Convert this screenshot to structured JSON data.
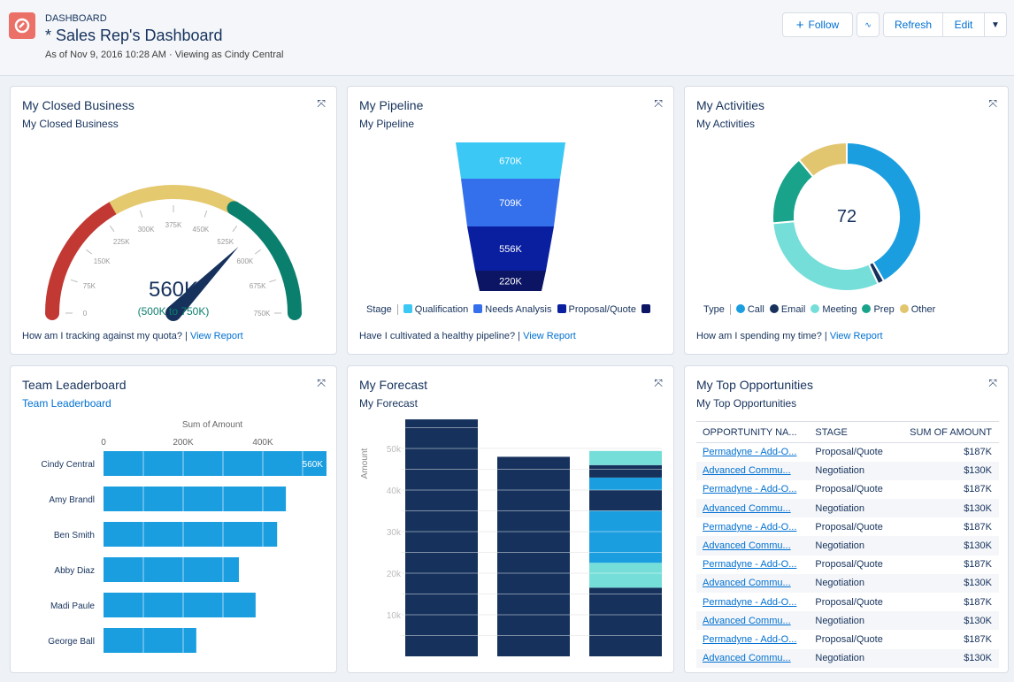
{
  "header": {
    "eyebrow": "DASHBOARD",
    "title": "* Sales Rep's Dashboard",
    "subtitle": "As of Nov 9, 2016 10:28 AM · Viewing as Cindy Central",
    "follow": "Follow",
    "refresh": "Refresh",
    "edit": "Edit"
  },
  "colors": {
    "accent": "#0070d2",
    "red": "#c23934",
    "yellow": "#e4c96f",
    "green": "#0b7f6e",
    "navy": "#16325c"
  },
  "cards": {
    "closed": {
      "title": "My Closed Business",
      "subtitle": "My Closed Business",
      "question": "How am I tracking against my quota?",
      "link": "View Report",
      "value": "560K",
      "range": "(500K to 750K)"
    },
    "pipeline": {
      "title": "My Pipeline",
      "subtitle": "My Pipeline",
      "question": "Have I cultivated a healthy pipeline?",
      "link": "View Report",
      "legend_title": "Stage"
    },
    "activities": {
      "title": "My Activities",
      "subtitle": "My Activities",
      "question": "How am I spending my time?",
      "link": "View Report",
      "legend_title": "Type",
      "total": "72"
    },
    "leaderboard": {
      "title": "Team Leaderboard",
      "subtitle": "Team Leaderboard"
    },
    "forecast": {
      "title": "My Forecast",
      "subtitle": "My Forecast"
    },
    "top": {
      "title": "My Top Opportunities",
      "subtitle": "My Top Opportunities",
      "columns": [
        "OPPORTUNITY NA...",
        "STAGE",
        "SUM OF AMOUNT"
      ],
      "rows": [
        [
          "Permadyne - Add-O...",
          "Proposal/Quote",
          "$187K"
        ],
        [
          "Advanced Commu...",
          "Negotiation",
          "$130K"
        ],
        [
          "Permadyne - Add-O...",
          "Proposal/Quote",
          "$187K"
        ],
        [
          "Advanced Commu...",
          "Negotiation",
          "$130K"
        ],
        [
          "Permadyne - Add-O...",
          "Proposal/Quote",
          "$187K"
        ],
        [
          "Advanced Commu...",
          "Negotiation",
          "$130K"
        ],
        [
          "Permadyne - Add-O...",
          "Proposal/Quote",
          "$187K"
        ],
        [
          "Advanced Commu...",
          "Negotiation",
          "$130K"
        ],
        [
          "Permadyne - Add-O...",
          "Proposal/Quote",
          "$187K"
        ],
        [
          "Advanced Commu...",
          "Negotiation",
          "$130K"
        ],
        [
          "Permadyne - Add-O...",
          "Proposal/Quote",
          "$187K"
        ],
        [
          "Advanced Commu...",
          "Negotiation",
          "$130K"
        ]
      ]
    }
  },
  "chart_data": [
    {
      "type": "gauge",
      "value": 560,
      "min": 0,
      "max": 750,
      "unit": "K",
      "ticks": [
        "0",
        "75K",
        "150K",
        "225K",
        "300K",
        "375K",
        "450K",
        "525K",
        "600K",
        "675K",
        "750K"
      ],
      "bands": [
        {
          "from": 0,
          "to": 250,
          "color": "#c23934"
        },
        {
          "from": 250,
          "to": 500,
          "color": "#e4c96f"
        },
        {
          "from": 500,
          "to": 750,
          "color": "#0b7f6e"
        }
      ]
    },
    {
      "type": "funnel",
      "legend_title": "Stage",
      "stages": [
        {
          "name": "Qualification",
          "label": "670K",
          "value": 670,
          "color": "#3bc8f5"
        },
        {
          "name": "Needs Analysis",
          "label": "709K",
          "value": 709,
          "color": "#3570ec"
        },
        {
          "name": "Proposal/Quote",
          "label": "556K",
          "value": 556,
          "color": "#0a1fa0"
        },
        {
          "name": "",
          "label": "220K",
          "value": 220,
          "color": "#0c1563"
        }
      ]
    },
    {
      "type": "donut",
      "total": 72,
      "legend_title": "Type",
      "slices": [
        {
          "name": "Call",
          "value": 30,
          "color": "#1b9ee0"
        },
        {
          "name": "Email",
          "value": 1,
          "color": "#16325c"
        },
        {
          "name": "Meeting",
          "value": 22,
          "color": "#76ded9"
        },
        {
          "name": "Prep",
          "value": 11,
          "color": "#1aa38b"
        },
        {
          "name": "Other",
          "value": 8,
          "color": "#e2c66f"
        }
      ]
    },
    {
      "type": "bar",
      "orientation": "horizontal",
      "xlabel": "Sum of Amount",
      "ticks": [
        "0",
        "200K",
        "400K"
      ],
      "xlim": [
        0,
        560
      ],
      "categories": [
        "Cindy Central",
        "Amy Brandl",
        "Ben Smith",
        "Abby Diaz",
        "Madi Paule",
        "George Ball"
      ],
      "values": [
        560,
        458,
        436,
        340,
        382,
        233
      ],
      "data_labels": [
        "560K"
      ],
      "color": "#1b9ee0"
    },
    {
      "type": "bar",
      "stacked": true,
      "ylabel": "Amount",
      "ticks": [
        "10k",
        "20k",
        "30k",
        "40k",
        "50k"
      ],
      "ylim": [
        0,
        57000
      ],
      "bars": [
        {
          "segments": [
            {
              "value": 57000,
              "color": "#16325c"
            }
          ]
        },
        {
          "segments": [
            {
              "value": 48000,
              "color": "#16325c"
            }
          ]
        },
        {
          "segments": [
            {
              "value": 16500,
              "color": "#16325c"
            },
            {
              "value": 6000,
              "color": "#76ded9"
            },
            {
              "value": 12500,
              "color": "#1b9ee0"
            },
            {
              "value": 5000,
              "color": "#16325c"
            },
            {
              "value": 3000,
              "color": "#1b9ee0"
            },
            {
              "value": 3000,
              "color": "#16325c"
            },
            {
              "value": 3400,
              "color": "#76ded9"
            }
          ]
        }
      ]
    }
  ]
}
